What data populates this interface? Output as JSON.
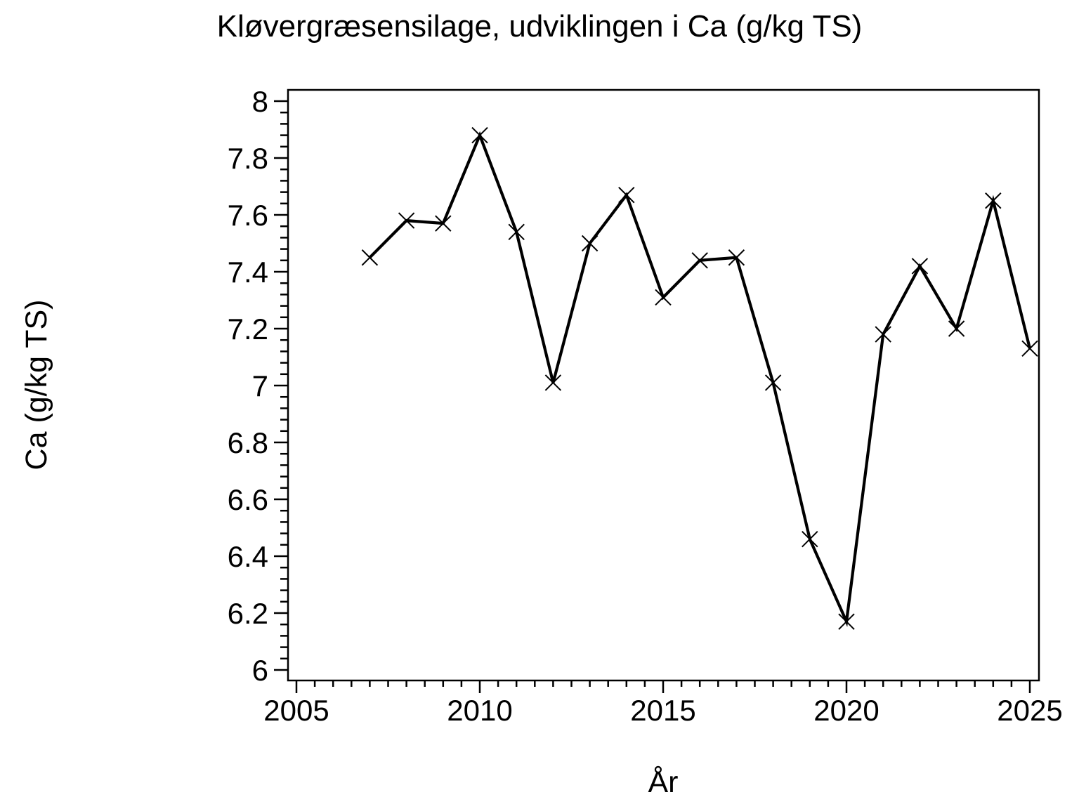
{
  "chart_data": {
    "type": "line",
    "title": "Kløvergræsensilage, udviklingen i Ca (g/kg TS)",
    "xlabel": "År",
    "ylabel": "Ca (g/kg TS)",
    "x": [
      2007,
      2008,
      2009,
      2010,
      2011,
      2012,
      2013,
      2014,
      2015,
      2016,
      2017,
      2018,
      2019,
      2020,
      2021,
      2022,
      2023,
      2024,
      2025
    ],
    "values": [
      7.45,
      7.58,
      7.57,
      7.88,
      7.54,
      7.01,
      7.5,
      7.67,
      7.31,
      7.44,
      7.45,
      7.01,
      6.46,
      6.17,
      7.18,
      7.42,
      7.2,
      7.65,
      7.13
    ],
    "xlim": [
      2005,
      2025
    ],
    "ylim": [
      6,
      8
    ],
    "x_major_ticks": [
      2005,
      2010,
      2015,
      2020,
      2025
    ],
    "x_minor_step": 0.5,
    "y_major_step": 0.2,
    "y_minor_step": 0.04,
    "y_tick_labels": [
      "6",
      "6.2",
      "6.4",
      "6.6",
      "6.8",
      "7",
      "7.2",
      "7.4",
      "7.6",
      "7.8",
      "8"
    ],
    "marker": "x",
    "line_color": "#000000",
    "marker_color": "#000000",
    "background_color": "#ffffff",
    "grid": false,
    "frame": "box",
    "legend_position": "none"
  }
}
